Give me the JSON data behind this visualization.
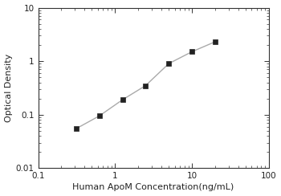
{
  "x": [
    0.313,
    0.625,
    1.25,
    2.5,
    5.0,
    10.0,
    20.0
  ],
  "y": [
    0.055,
    0.095,
    0.19,
    0.35,
    0.9,
    1.5,
    2.3
  ],
  "xlim": [
    0.1,
    100
  ],
  "ylim": [
    0.01,
    10
  ],
  "xlabel": "Human ApoM Concentration(ng/mL)",
  "ylabel": "Optical Density",
  "line_color": "#aaaaaa",
  "marker_color": "#222222",
  "marker": "s",
  "marker_size": 4,
  "line_width": 1.0,
  "xlabel_fontsize": 8,
  "ylabel_fontsize": 8,
  "tick_fontsize": 7.5,
  "spine_color": "#333333",
  "background_color": "#ffffff",
  "xtick_labels": [
    "0.1",
    "1",
    "10",
    "100"
  ],
  "xtick_vals": [
    0.1,
    1,
    10,
    100
  ],
  "ytick_labels": [
    "0.01",
    "0.1",
    "1",
    "10"
  ],
  "ytick_vals": [
    0.01,
    0.1,
    1,
    10
  ]
}
